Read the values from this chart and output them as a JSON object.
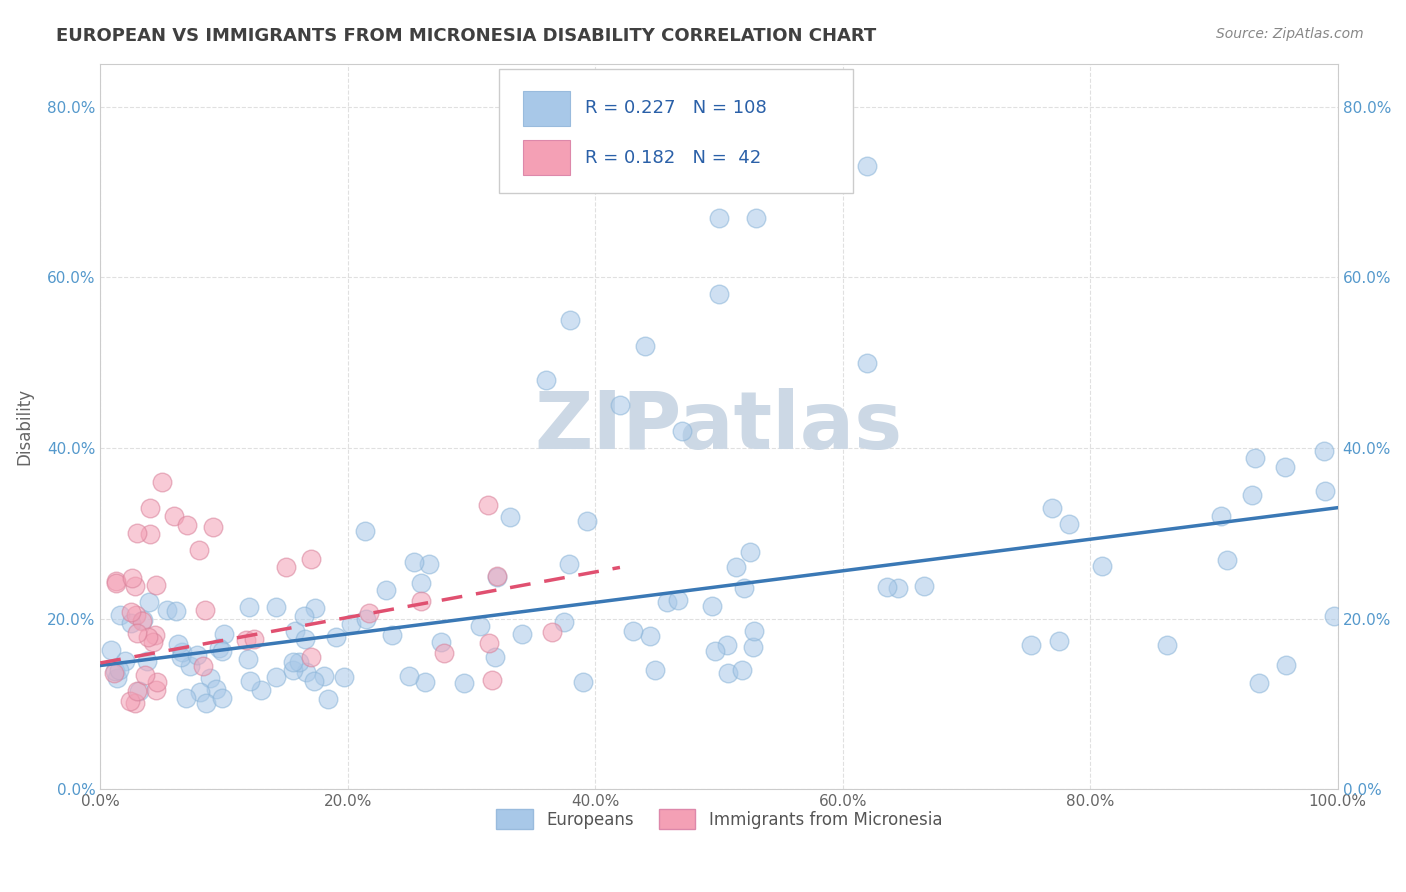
{
  "title": "EUROPEAN VS IMMIGRANTS FROM MICRONESIA DISABILITY CORRELATION CHART",
  "source": "Source: ZipAtlas.com",
  "ylabel": "Disability",
  "xlim": [
    0.0,
    1.0
  ],
  "ylim": [
    0.0,
    0.85
  ],
  "xticks": [
    0.0,
    0.2,
    0.4,
    0.6,
    0.8,
    1.0
  ],
  "yticks": [
    0.0,
    0.2,
    0.4,
    0.6,
    0.8
  ],
  "xtick_labels": [
    "0.0%",
    "20.0%",
    "40.0%",
    "60.0%",
    "80.0%",
    "100.0%"
  ],
  "ytick_labels": [
    "0.0%",
    "20.0%",
    "40.0%",
    "60.0%",
    "80.0%"
  ],
  "blue_color": "#a8c8e8",
  "pink_color": "#f4a0b5",
  "blue_line_color": "#3a78b5",
  "pink_line_color": "#e05070",
  "legend_text_color": "#2a60a8",
  "watermark_color": "#ccd8e5",
  "background_color": "#ffffff",
  "grid_color": "#cccccc",
  "title_color": "#404040",
  "source_color": "#888888",
  "R_blue": 0.227,
  "N_blue": 108,
  "R_pink": 0.182,
  "N_pink": 42,
  "blue_trend_start_x": 0.0,
  "blue_trend_start_y": 0.145,
  "blue_trend_end_x": 1.0,
  "blue_trend_end_y": 0.33,
  "pink_trend_start_x": 0.0,
  "pink_trend_start_y": 0.148,
  "pink_trend_end_x": 0.42,
  "pink_trend_end_y": 0.26
}
